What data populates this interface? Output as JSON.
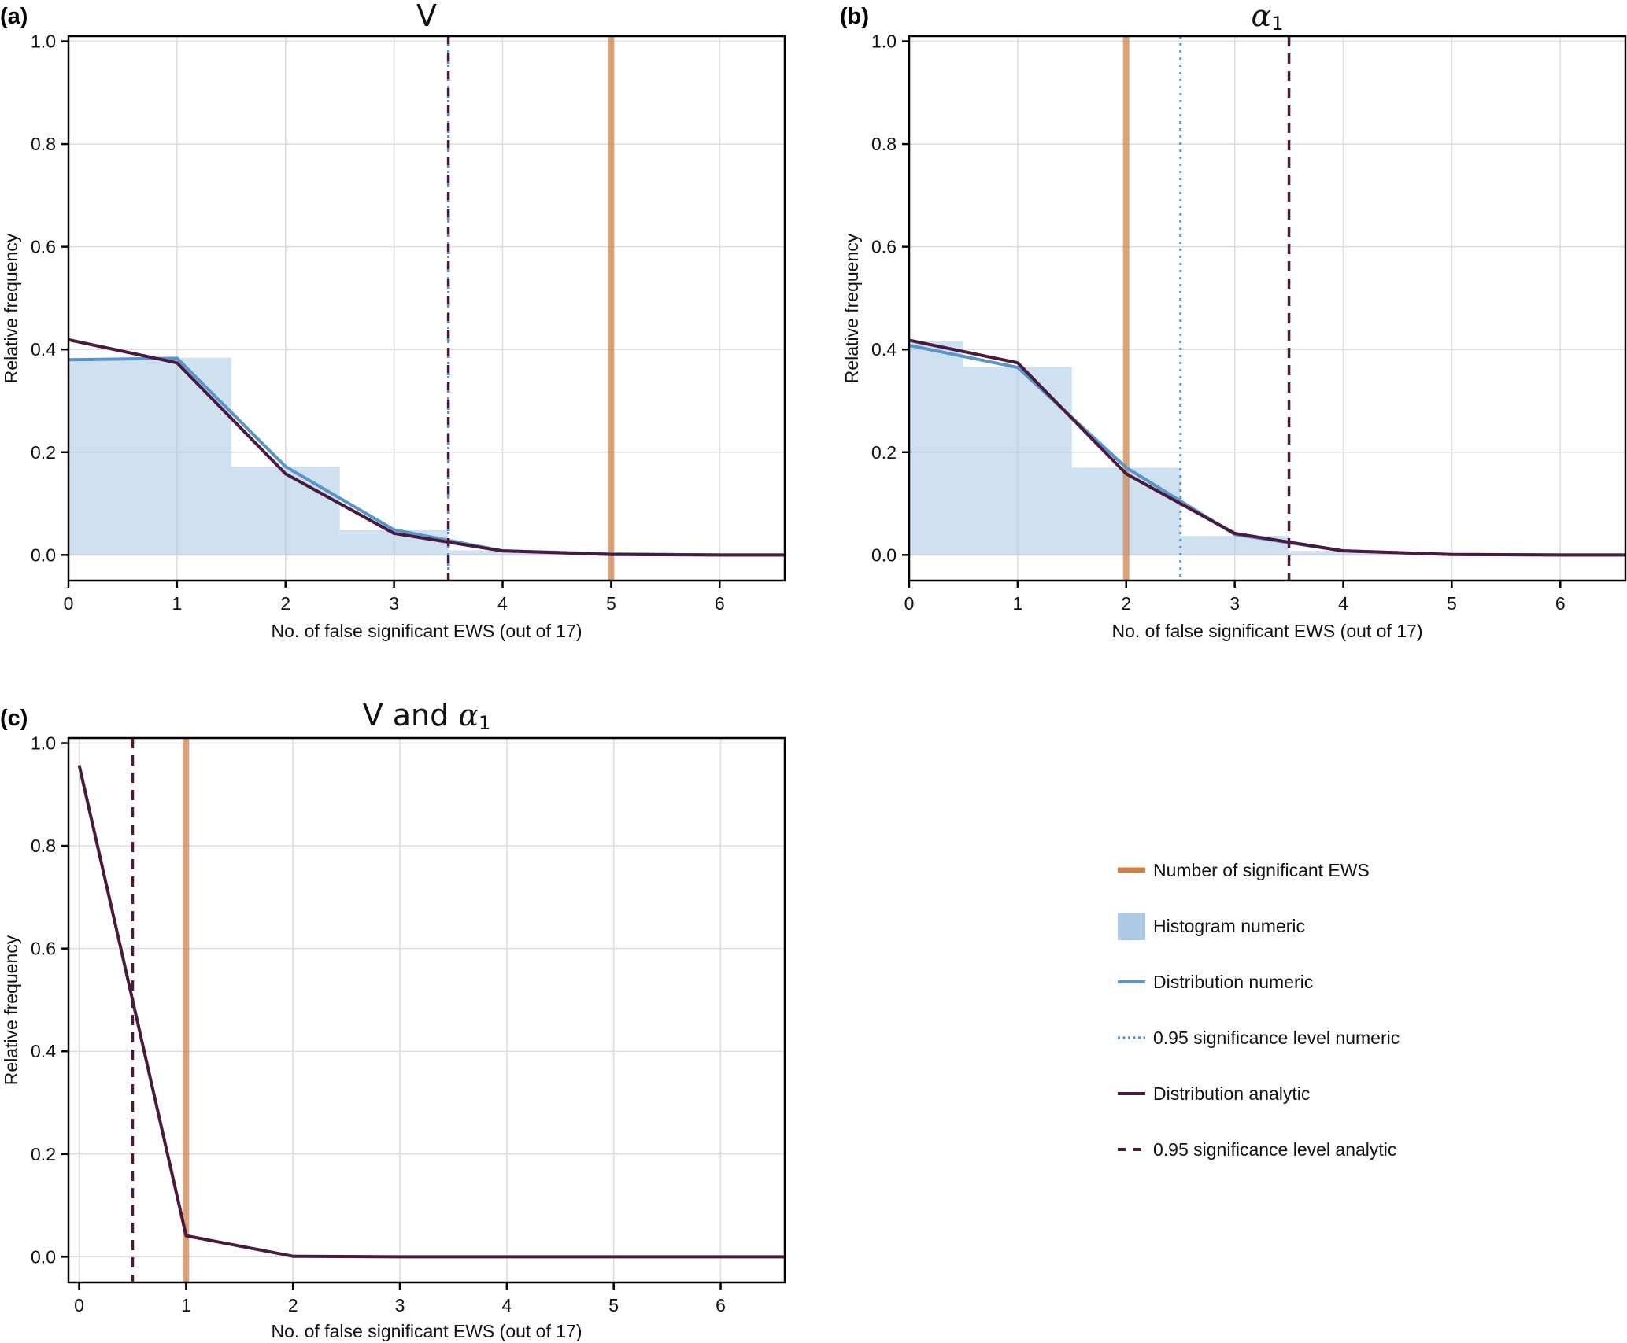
{
  "colors": {
    "observed": "#cd7f45",
    "observed_alpha": 0.7,
    "histogram": "#adc9e6",
    "histogram_alpha": 0.58,
    "numeric": "#5b93cc",
    "analytic": "#4a1a3c",
    "grid": "#dcdcdc",
    "axis": "#000000"
  },
  "legend": {
    "placement": "right of panel (c)",
    "items": [
      {
        "label": "Number of significant EWS",
        "kind": "thick-line",
        "color_key": "observed"
      },
      {
        "label": "Histogram numeric",
        "kind": "patch",
        "color_key": "histogram"
      },
      {
        "label": "Distribution numeric",
        "kind": "line",
        "color_key": "numeric"
      },
      {
        "label": "0.95 significance level numeric",
        "kind": "dotted-line",
        "color_key": "numeric"
      },
      {
        "label": "Distribution analytic",
        "kind": "line",
        "color_key": "analytic"
      },
      {
        "label": "0.95 significance level analytic",
        "kind": "dashed-line",
        "color_key": "analytic"
      }
    ]
  },
  "chart_data": [
    {
      "id": "a",
      "panel_tag": "(a)",
      "title": "V",
      "title_parts": [
        {
          "text": "V",
          "greek": false
        }
      ],
      "type": "bar+line",
      "xlabel": "No. of false significant EWS (out of 17)",
      "ylabel": "Relative frequency",
      "xlim": [
        0,
        6.6
      ],
      "ylim": [
        -0.05,
        1.01
      ],
      "xticks": [
        0,
        1,
        2,
        3,
        4,
        5,
        6
      ],
      "yticks": [
        0.0,
        0.2,
        0.4,
        0.6,
        0.8,
        1.0
      ],
      "ytick_labels": [
        "0.0",
        "0.2",
        "0.4",
        "0.6",
        "0.8",
        "1.0"
      ],
      "grid": true,
      "x": [
        0,
        1,
        2,
        3,
        4,
        5,
        6,
        7
      ],
      "histogram_numeric": [
        0.38,
        0.384,
        0.172,
        0.048,
        0.009,
        0.001,
        0.0,
        0.0
      ],
      "distribution_numeric": [
        0.38,
        0.383,
        0.172,
        0.049,
        0.008,
        0.002,
        0.0,
        0.0
      ],
      "distribution_analytic": [
        0.419,
        0.374,
        0.158,
        0.042,
        0.008,
        0.001,
        0.0,
        0.0
      ],
      "observed_significant": 5,
      "significance_numeric": 3.5,
      "significance_analytic": 3.5
    },
    {
      "id": "b",
      "panel_tag": "(b)",
      "title": "α1",
      "title_parts": [
        {
          "text": "α",
          "greek": true
        },
        {
          "text": "1",
          "sub": true
        }
      ],
      "type": "bar+line",
      "xlabel": "No. of false significant EWS (out of 17)",
      "ylabel": "Relative frequency",
      "xlim": [
        0,
        6.6
      ],
      "ylim": [
        -0.05,
        1.01
      ],
      "xticks": [
        0,
        1,
        2,
        3,
        4,
        5,
        6
      ],
      "yticks": [
        0.0,
        0.2,
        0.4,
        0.6,
        0.8,
        1.0
      ],
      "ytick_labels": [
        "0.0",
        "0.2",
        "0.4",
        "0.6",
        "0.8",
        "1.0"
      ],
      "grid": true,
      "x": [
        0,
        1,
        2,
        3,
        4,
        5,
        6,
        7
      ],
      "histogram_numeric": [
        0.416,
        0.366,
        0.17,
        0.037,
        0.008,
        0.001,
        0.0,
        0.0
      ],
      "distribution_numeric": [
        0.408,
        0.365,
        0.17,
        0.04,
        0.008,
        0.001,
        0.0,
        0.0
      ],
      "distribution_analytic": [
        0.418,
        0.374,
        0.158,
        0.042,
        0.008,
        0.001,
        0.0,
        0.0
      ],
      "observed_significant": 2,
      "significance_numeric": 2.5,
      "significance_analytic": 3.5
    },
    {
      "id": "c",
      "panel_tag": "(c)",
      "title": "V and α1",
      "title_parts": [
        {
          "text": "V and ",
          "greek": false
        },
        {
          "text": "α",
          "greek": true
        },
        {
          "text": "1",
          "sub": true
        }
      ],
      "type": "line",
      "xlabel": "No. of false significant EWS (out of 17)",
      "ylabel": "Relative frequency",
      "xlim": [
        -0.1,
        6.6
      ],
      "ylim": [
        -0.05,
        1.01
      ],
      "xticks": [
        0,
        1,
        2,
        3,
        4,
        5,
        6
      ],
      "yticks": [
        0.0,
        0.2,
        0.4,
        0.6,
        0.8,
        1.0
      ],
      "ytick_labels": [
        "0.0",
        "0.2",
        "0.4",
        "0.6",
        "0.8",
        "1.0"
      ],
      "grid": true,
      "x": [
        0,
        1,
        2,
        3,
        4,
        5,
        6,
        7
      ],
      "histogram_numeric": null,
      "distribution_numeric": null,
      "distribution_analytic": [
        0.957,
        0.041,
        0.001,
        0.0,
        0.0,
        0.0,
        0.0,
        0.0
      ],
      "observed_significant": 1,
      "significance_numeric": null,
      "significance_analytic": 0.5
    }
  ]
}
